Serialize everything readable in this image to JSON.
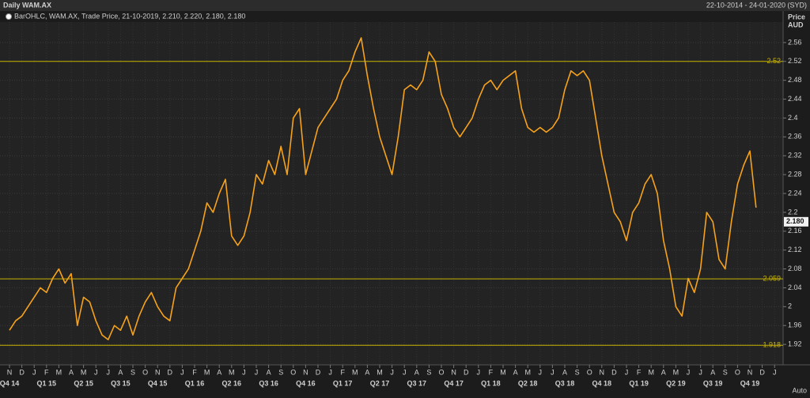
{
  "chart_data": {
    "type": "line",
    "title": "Daily WAM.AX",
    "subtitle": "22-10-2014 - 24-01-2020 (SYD)",
    "ylabel": "Price",
    "yunit": "AUD",
    "annotation": "Auto",
    "categories": [
      "N",
      null,
      "D",
      null,
      "J",
      null,
      "F",
      null,
      "M",
      null,
      "A",
      null,
      "M",
      null,
      "J",
      null,
      "J",
      null,
      "A",
      null,
      "S",
      null,
      "O",
      null,
      "N",
      null,
      "D",
      null,
      "J",
      null,
      "F",
      null,
      "M",
      null,
      "A",
      null,
      "M",
      null,
      "J",
      null,
      "J",
      null,
      "A",
      null,
      "S",
      null,
      "O",
      null,
      "N",
      null,
      "D",
      null,
      "J",
      null,
      "F",
      null,
      "M",
      null,
      "A",
      null,
      "M",
      null,
      "J",
      null,
      "J",
      null,
      "A",
      null,
      "S",
      null,
      "O",
      null,
      "N",
      null,
      "D",
      null,
      "J",
      null,
      "F",
      null,
      "M",
      null,
      "A",
      null,
      "M",
      null,
      "J",
      null,
      "J",
      null,
      "A",
      null,
      "S",
      null,
      "O",
      null,
      "N",
      null,
      "D",
      null,
      "J",
      null,
      "F",
      null,
      "M",
      null,
      "A",
      null,
      "M",
      null,
      "J",
      null,
      "J",
      null,
      "A",
      null,
      "S",
      null,
      "O",
      null,
      "N",
      null,
      "D",
      null,
      "J",
      null
    ],
    "quarters": [
      "Q4 14",
      "Q1 15",
      "Q2 15",
      "Q3 15",
      "Q4 15",
      "Q1 16",
      "Q2 16",
      "Q3 16",
      "Q4 16",
      "Q1 17",
      "Q2 17",
      "Q3 17",
      "Q4 17",
      "Q1 18",
      "Q2 18",
      "Q3 18",
      "Q4 18",
      "Q1 19",
      "Q2 19",
      "Q3 19",
      "Q4 19"
    ],
    "series": [
      {
        "name": "BarOHLC, WAM.AX, Trade Price, 21-10-2019, 2.210, 2.220, 2.180, 2.180",
        "color": "#f7a21b",
        "values": [
          1.95,
          1.97,
          1.98,
          2.0,
          2.02,
          2.04,
          2.03,
          2.06,
          2.08,
          2.05,
          2.07,
          1.96,
          2.02,
          2.01,
          1.97,
          1.94,
          1.93,
          1.96,
          1.95,
          1.98,
          1.94,
          1.98,
          2.01,
          2.03,
          2.0,
          1.98,
          1.97,
          2.04,
          2.06,
          2.08,
          2.12,
          2.16,
          2.22,
          2.2,
          2.24,
          2.27,
          2.15,
          2.13,
          2.15,
          2.2,
          2.28,
          2.26,
          2.31,
          2.28,
          2.34,
          2.28,
          2.4,
          2.42,
          2.28,
          2.33,
          2.38,
          2.4,
          2.42,
          2.44,
          2.48,
          2.5,
          2.54,
          2.57,
          2.49,
          2.42,
          2.36,
          2.32,
          2.28,
          2.36,
          2.46,
          2.47,
          2.46,
          2.48,
          2.54,
          2.52,
          2.45,
          2.42,
          2.38,
          2.36,
          2.38,
          2.4,
          2.44,
          2.47,
          2.48,
          2.46,
          2.48,
          2.49,
          2.5,
          2.42,
          2.38,
          2.37,
          2.38,
          2.37,
          2.38,
          2.4,
          2.46,
          2.5,
          2.49,
          2.5,
          2.48,
          2.4,
          2.32,
          2.26,
          2.2,
          2.18,
          2.14,
          2.2,
          2.22,
          2.26,
          2.28,
          2.24,
          2.14,
          2.08,
          2.0,
          1.98,
          2.06,
          2.03,
          2.08,
          2.2,
          2.18,
          2.1,
          2.08,
          2.18,
          2.26,
          2.3,
          2.33,
          2.21,
          null,
          null,
          null,
          null
        ]
      }
    ],
    "levels": [
      2.52,
      2.059,
      1.918
    ],
    "level_color": "#c9b300",
    "last_price": {
      "value": 2.18,
      "label": "2.180"
    },
    "ylim": [
      1.88,
      2.6
    ],
    "yticks": [
      1.92,
      1.96,
      2,
      2.04,
      2.08,
      2.12,
      2.16,
      2.2,
      2.24,
      2.28,
      2.32,
      2.36,
      2.4,
      2.44,
      2.48,
      2.52,
      2.56
    ],
    "grid": true
  }
}
